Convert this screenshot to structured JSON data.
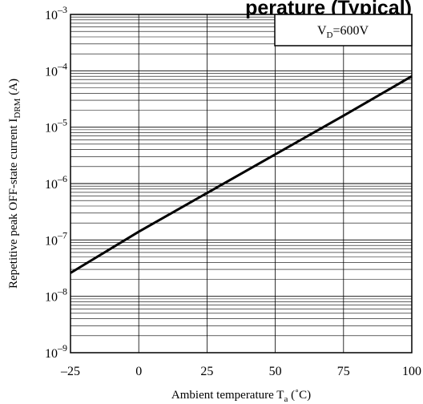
{
  "chart_data": {
    "type": "line",
    "title": "",
    "title_fragment": "perature (Typical)",
    "xlabel": {
      "main": "Ambient temperature T",
      "sub": "a",
      "unit": " (˚C)"
    },
    "ylabel": {
      "main": "Repetitive peak OFF-state current I",
      "sub": "DRM",
      "unit": " (A)"
    },
    "x_scale": "linear",
    "y_scale": "log",
    "xlim": [
      -25,
      100
    ],
    "ylim": [
      1e-09,
      0.001
    ],
    "x_ticks": [
      {
        "value": -25,
        "label": "–25"
      },
      {
        "value": 0,
        "label": "0"
      },
      {
        "value": 25,
        "label": "25"
      },
      {
        "value": 50,
        "label": "50"
      },
      {
        "value": 75,
        "label": "75"
      },
      {
        "value": 100,
        "label": "100"
      }
    ],
    "y_ticks": [
      {
        "value": 1e-09,
        "base": "10",
        "exp": "–9"
      },
      {
        "value": 1e-08,
        "base": "10",
        "exp": "–8"
      },
      {
        "value": 1e-07,
        "base": "10",
        "exp": "–7"
      },
      {
        "value": 1e-06,
        "base": "10",
        "exp": "–6"
      },
      {
        "value": 1e-05,
        "base": "10",
        "exp": "–5"
      },
      {
        "value": 0.0001,
        "base": "10",
        "exp": "–4"
      },
      {
        "value": 0.001,
        "base": "10",
        "exp": "–3"
      }
    ],
    "grid": true,
    "annotation": {
      "main": "V",
      "sub": "D",
      "rest": "=600V"
    },
    "series": [
      {
        "x": [
          -25,
          0,
          25,
          50,
          75,
          100
        ],
        "y": [
          2.6e-08,
          1.4e-07,
          6.8e-07,
          3.3e-06,
          1.6e-05,
          8e-05
        ],
        "color": "#000000"
      }
    ]
  }
}
